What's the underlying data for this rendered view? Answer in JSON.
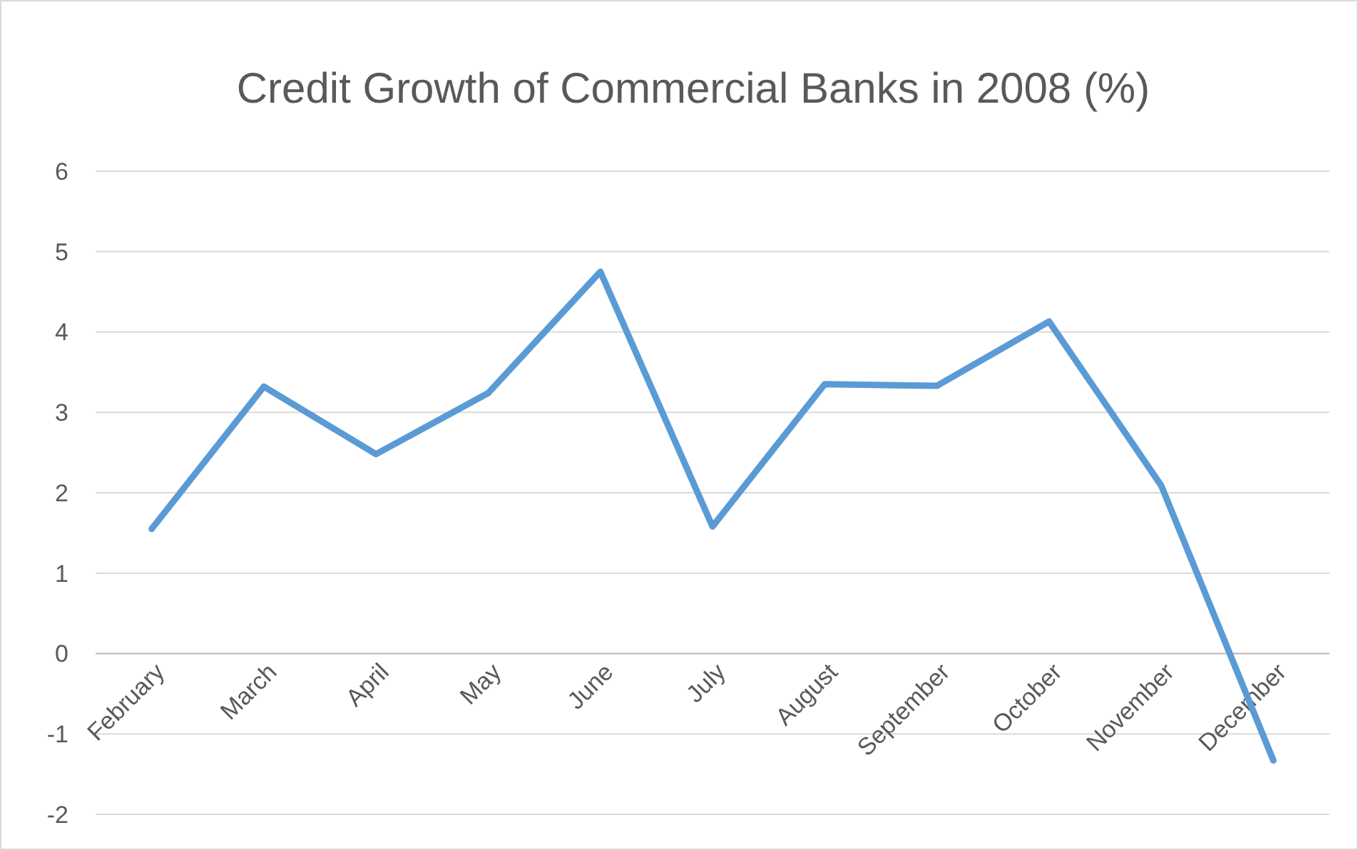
{
  "chart_data": {
    "type": "line",
    "title": "Credit Growth of Commercial Banks in 2008 (%)",
    "categories": [
      "February",
      "March",
      "April",
      "May",
      "June",
      "July",
      "August",
      "September",
      "October",
      "November",
      "December"
    ],
    "series": [
      {
        "color": "#5b9bd5",
        "values": [
          1.55,
          3.32,
          2.48,
          3.24,
          4.75,
          1.58,
          3.35,
          3.33,
          4.13,
          2.09,
          -1.33
        ]
      }
    ],
    "ylim": [
      -2,
      6
    ],
    "yticks": [
      -2,
      -1,
      0,
      1,
      2,
      3,
      4,
      5,
      6
    ],
    "grid": "y",
    "marker": "none",
    "line_style": "solid"
  }
}
